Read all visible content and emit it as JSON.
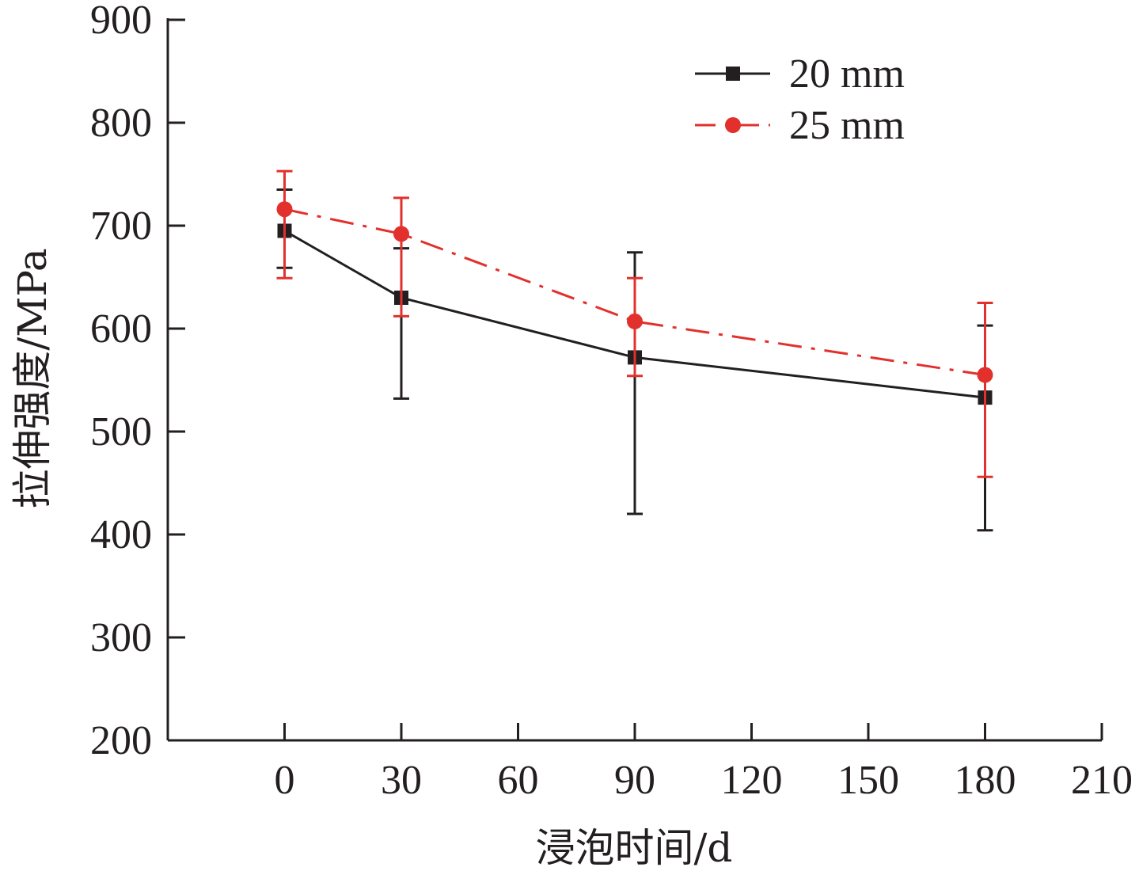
{
  "chart_data": {
    "type": "line",
    "title": "",
    "xlabel": "浸泡时间/d",
    "ylabel": "拉伸强度/MPa",
    "xlim": [
      -30,
      210
    ],
    "ylim": [
      200,
      900
    ],
    "xticks": [
      0,
      30,
      60,
      90,
      120,
      150,
      180,
      210
    ],
    "yticks": [
      200,
      300,
      400,
      500,
      600,
      700,
      800,
      900
    ],
    "grid": false,
    "legend_position": "top-right",
    "series": [
      {
        "name": "20 mm",
        "color": "#231f20",
        "line_style": "solid",
        "marker": "square",
        "x": [
          0,
          30,
          90,
          180
        ],
        "y": [
          695,
          630,
          572,
          533
        ],
        "error_upper": [
          735,
          678,
          674,
          603
        ],
        "error_lower": [
          659,
          532,
          420,
          404
        ]
      },
      {
        "name": "25 mm",
        "color": "#e2312d",
        "line_style": "dash-dot",
        "marker": "circle",
        "x": [
          0,
          30,
          90,
          180
        ],
        "y": [
          716,
          692,
          607,
          555
        ],
        "error_upper": [
          753,
          727,
          649,
          625
        ],
        "error_lower": [
          649,
          612,
          554,
          456
        ]
      }
    ]
  }
}
